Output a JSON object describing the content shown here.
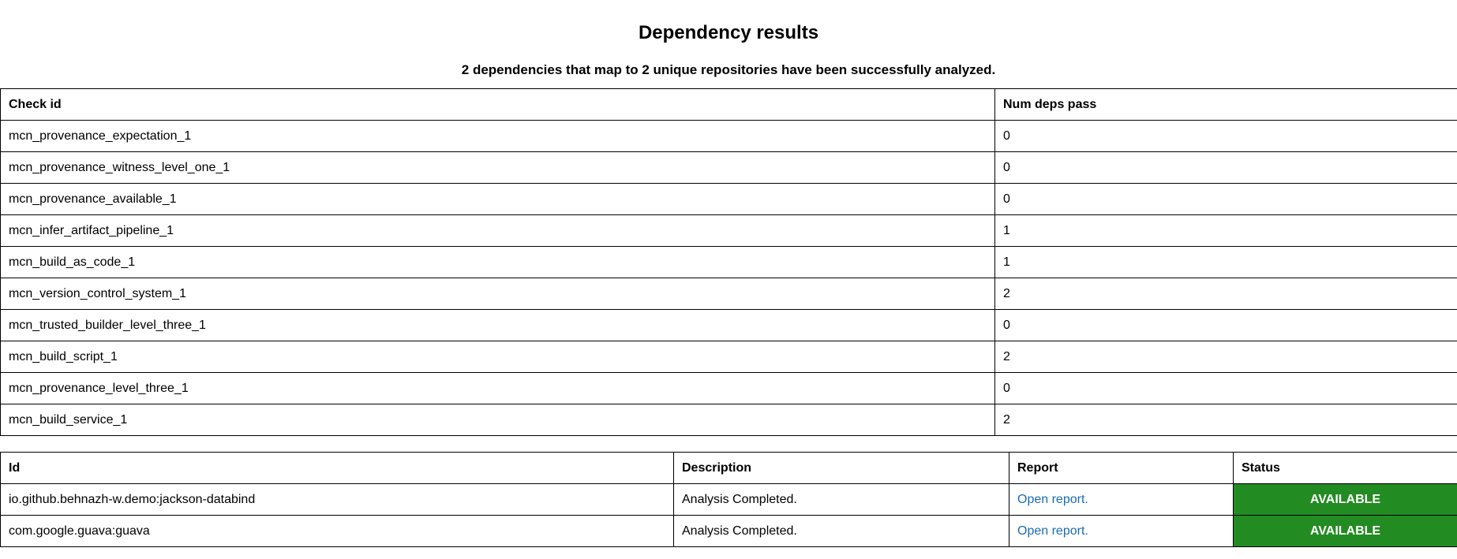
{
  "title": "Dependency results",
  "summary": "2 dependencies that map to 2 unique repositories have been successfully analyzed.",
  "checks_table": {
    "headers": {
      "check_id": "Check id",
      "num_deps_pass": "Num deps pass"
    },
    "rows": [
      {
        "check_id": "mcn_provenance_expectation_1",
        "num_deps_pass": "0"
      },
      {
        "check_id": "mcn_provenance_witness_level_one_1",
        "num_deps_pass": "0"
      },
      {
        "check_id": "mcn_provenance_available_1",
        "num_deps_pass": "0"
      },
      {
        "check_id": "mcn_infer_artifact_pipeline_1",
        "num_deps_pass": "1"
      },
      {
        "check_id": "mcn_build_as_code_1",
        "num_deps_pass": "1"
      },
      {
        "check_id": "mcn_version_control_system_1",
        "num_deps_pass": "2"
      },
      {
        "check_id": "mcn_trusted_builder_level_three_1",
        "num_deps_pass": "0"
      },
      {
        "check_id": "mcn_build_script_1",
        "num_deps_pass": "2"
      },
      {
        "check_id": "mcn_provenance_level_three_1",
        "num_deps_pass": "0"
      },
      {
        "check_id": "mcn_build_service_1",
        "num_deps_pass": "2"
      }
    ]
  },
  "deps_table": {
    "headers": {
      "id": "Id",
      "description": "Description",
      "report": "Report",
      "status": "Status"
    },
    "rows": [
      {
        "id": "io.github.behnazh-w.demo:jackson-databind",
        "description": "Analysis Completed.",
        "report": "Open report.",
        "status": "AVAILABLE"
      },
      {
        "id": "com.google.guava:guava",
        "description": "Analysis Completed.",
        "report": "Open report.",
        "status": "AVAILABLE"
      }
    ]
  },
  "colors": {
    "status_available_bg": "#228b22",
    "link": "#1a6bb5"
  }
}
